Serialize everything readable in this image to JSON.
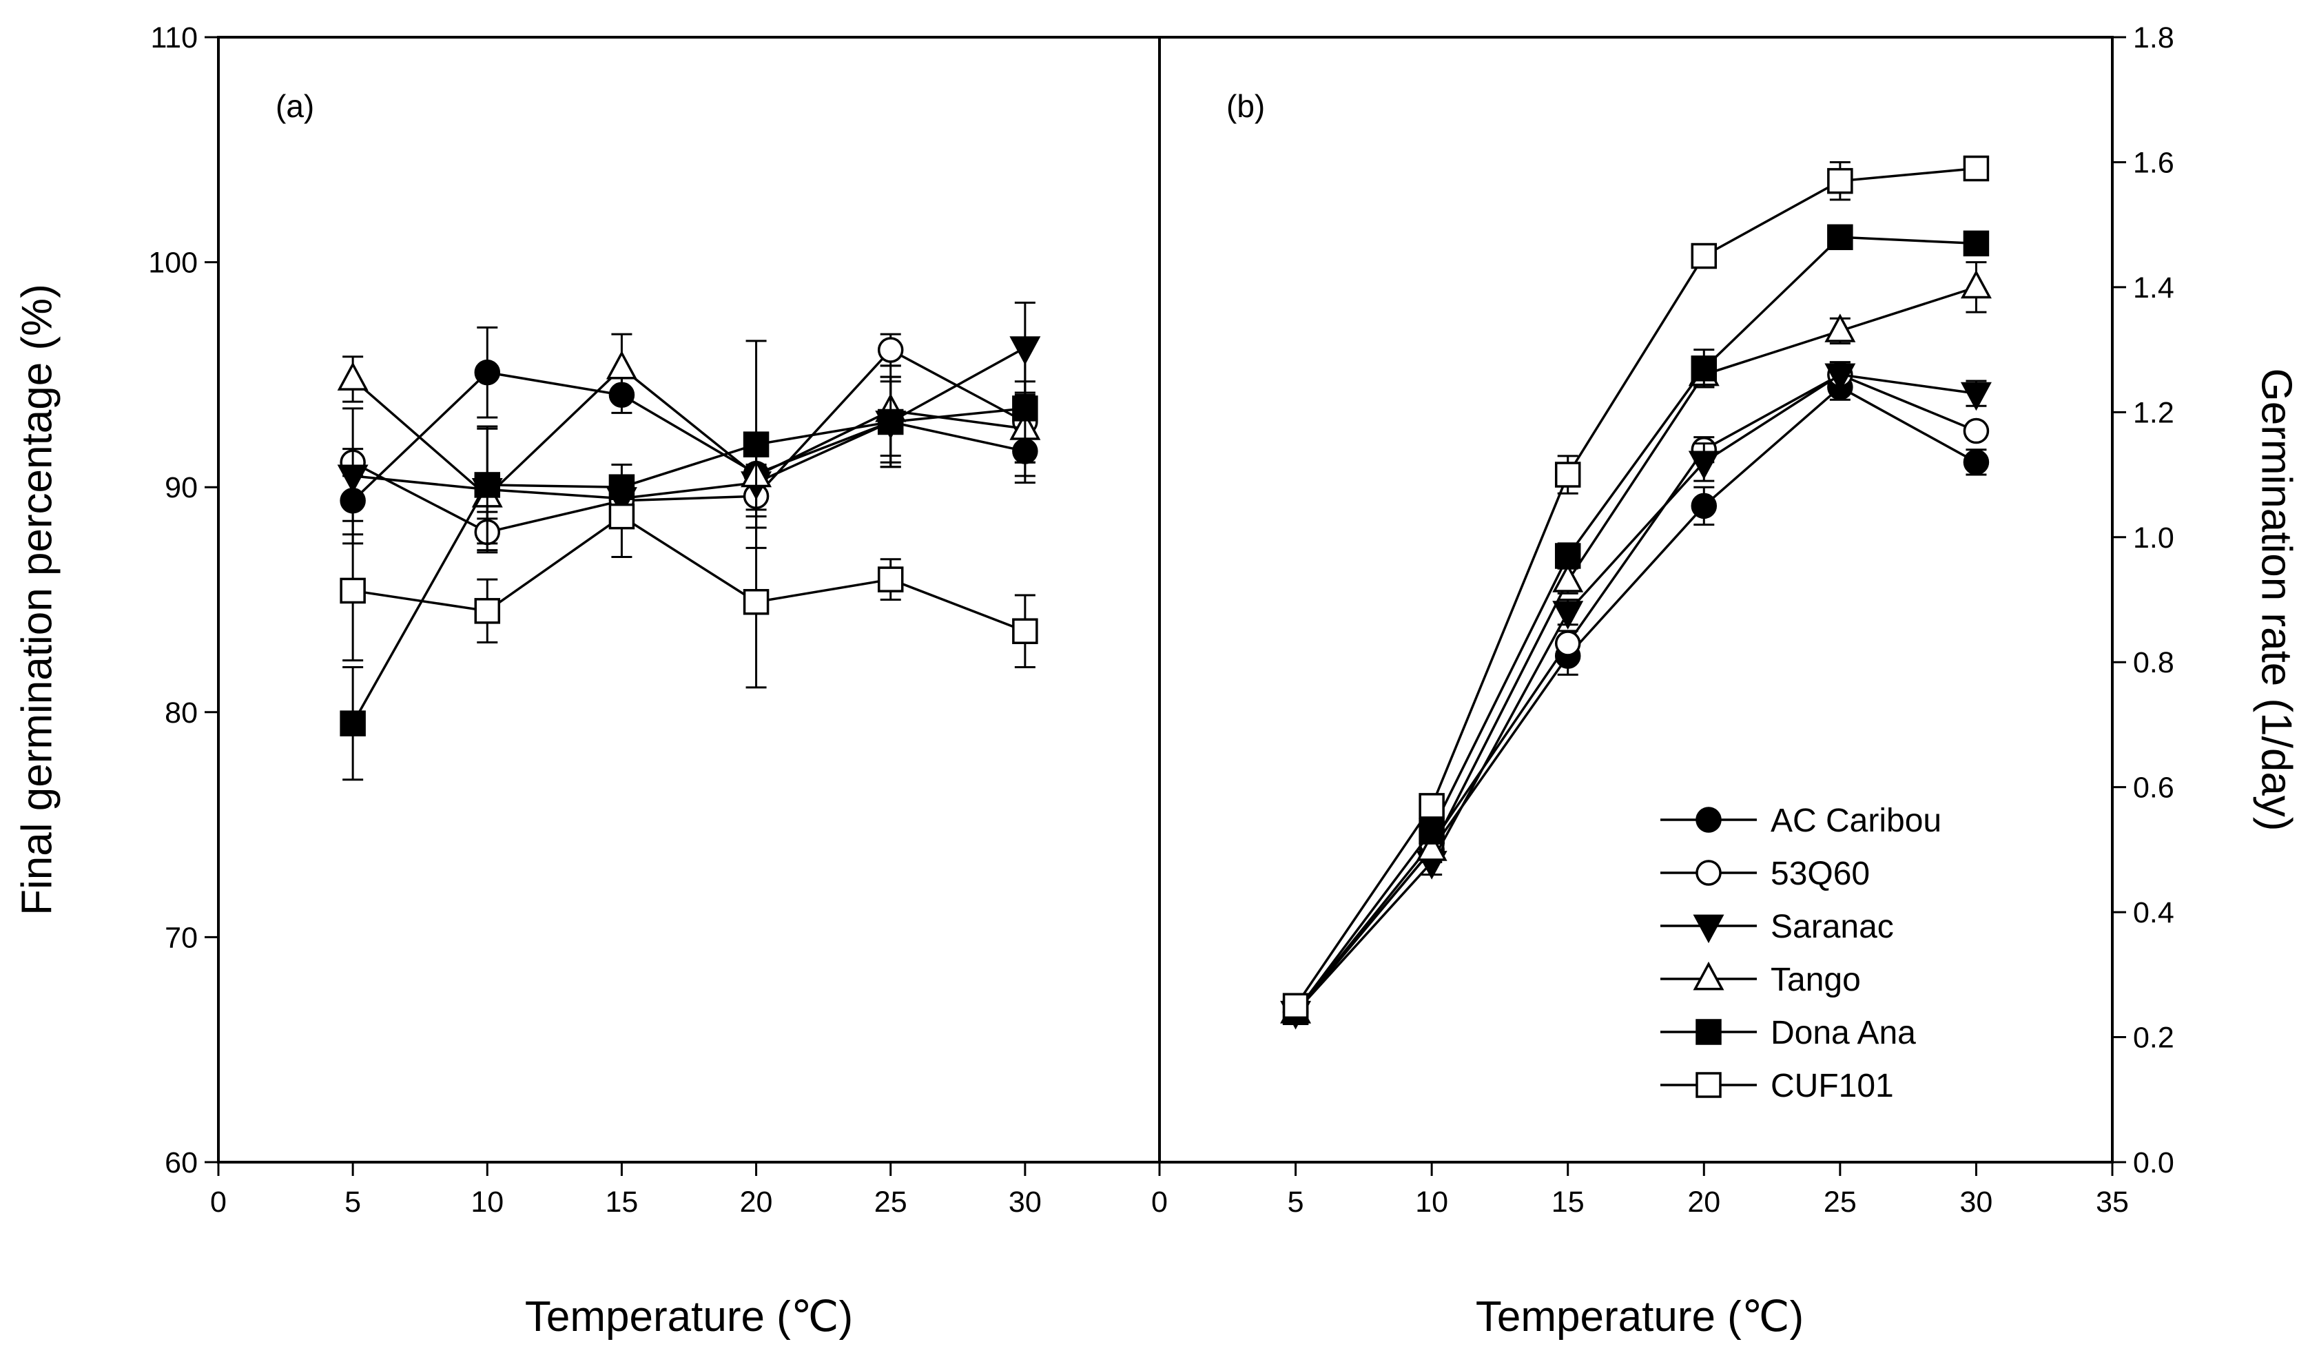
{
  "chart_data": [
    {
      "panel": "(a)",
      "type": "line",
      "xlabel": "Temperature (℃)",
      "ylabel": "Final germination percentage (%)",
      "xlim": [
        0,
        35
      ],
      "ylim": [
        60,
        110
      ],
      "xticks": [
        0,
        5,
        10,
        15,
        20,
        25,
        30
      ],
      "yticks": [
        60,
        70,
        80,
        90,
        100,
        110
      ],
      "x": [
        5,
        10,
        15,
        20,
        25,
        30
      ],
      "series": [
        {
          "name": "AC Caribou",
          "marker": "circle-filled",
          "values": [
            89.4,
            95.1,
            94.1,
            90.6,
            92.9,
            91.6
          ],
          "errors": [
            1.5,
            2.0,
            0.8,
            1.3,
            1.8,
            1.4
          ]
        },
        {
          "name": "53Q60",
          "marker": "circle-open",
          "values": [
            91.1,
            88.0,
            89.4,
            89.6,
            96.1,
            92.9
          ],
          "errors": [
            0.6,
            0.9,
            0.9,
            1.4,
            0.7,
            1.8
          ]
        },
        {
          "name": "Saranac",
          "marker": "triangle-down-filled",
          "values": [
            90.5,
            89.9,
            89.5,
            90.2,
            92.9,
            96.2
          ],
          "errors": [
            3.0,
            2.7,
            1.0,
            2.0,
            2.0,
            2.0
          ]
        },
        {
          "name": "Tango",
          "marker": "triangle-up-open",
          "values": [
            94.8,
            89.6,
            95.3,
            90.5,
            93.4,
            92.6
          ],
          "errors": [
            1.0,
            1.0,
            1.5,
            1.5,
            2.0,
            1.5
          ]
        },
        {
          "name": "Dona Ana",
          "marker": "square-filled",
          "values": [
            79.5,
            90.1,
            90.0,
            91.9,
            92.9,
            93.5
          ],
          "errors": [
            2.5,
            2.6,
            1.0,
            4.6,
            2.0,
            3.0
          ]
        },
        {
          "name": "CUF101",
          "marker": "square-open",
          "values": [
            85.4,
            84.5,
            88.7,
            84.9,
            85.9,
            83.6
          ],
          "errors": [
            3.1,
            1.4,
            1.8,
            3.8,
            0.9,
            1.6
          ]
        }
      ]
    },
    {
      "panel": "(b)",
      "type": "line",
      "xlabel": "Temperature (℃)",
      "ylabel": "Germination rate (1/day)",
      "xlim": [
        0,
        35
      ],
      "ylim": [
        0.0,
        1.8
      ],
      "xticks": [
        0,
        5,
        10,
        15,
        20,
        25,
        30,
        35
      ],
      "yticks": [
        "0.0",
        "0.2",
        "0.4",
        "0.6",
        "0.8",
        "1.0",
        "1.2",
        "1.4",
        "1.6",
        "1.8"
      ],
      "x": [
        5,
        10,
        15,
        20,
        25,
        30
      ],
      "legend_position": "bottom-right",
      "series": [
        {
          "name": "AC Caribou",
          "marker": "circle-filled",
          "values": [
            0.24,
            0.5,
            0.81,
            1.05,
            1.24,
            1.12
          ],
          "errors": [
            0.01,
            0.02,
            0.03,
            0.03,
            0.02,
            0.02
          ]
        },
        {
          "name": "53Q60",
          "marker": "circle-open",
          "values": [
            0.24,
            0.51,
            0.83,
            1.14,
            1.26,
            1.17
          ],
          "errors": [
            0.01,
            0.02,
            0.02,
            0.02,
            0.02,
            0.01
          ]
        },
        {
          "name": "Saranac",
          "marker": "triangle-down-filled",
          "values": [
            0.24,
            0.48,
            0.88,
            1.12,
            1.26,
            1.23
          ],
          "errors": [
            0.01,
            0.02,
            0.02,
            0.03,
            0.02,
            0.02
          ]
        },
        {
          "name": "Tango",
          "marker": "triangle-up-open",
          "values": [
            0.24,
            0.5,
            0.93,
            1.26,
            1.33,
            1.4
          ],
          "errors": [
            0.01,
            0.02,
            0.02,
            0.02,
            0.02,
            0.04
          ]
        },
        {
          "name": "Dona Ana",
          "marker": "square-filled",
          "values": [
            0.24,
            0.53,
            0.97,
            1.27,
            1.48,
            1.47
          ],
          "errors": [
            0.01,
            0.02,
            0.02,
            0.03,
            0.01,
            0.01
          ]
        },
        {
          "name": "CUF101",
          "marker": "square-open",
          "values": [
            0.25,
            0.57,
            1.1,
            1.45,
            1.57,
            1.59
          ],
          "errors": [
            0.01,
            0.01,
            0.03,
            0.01,
            0.03,
            0.01
          ]
        }
      ]
    }
  ]
}
